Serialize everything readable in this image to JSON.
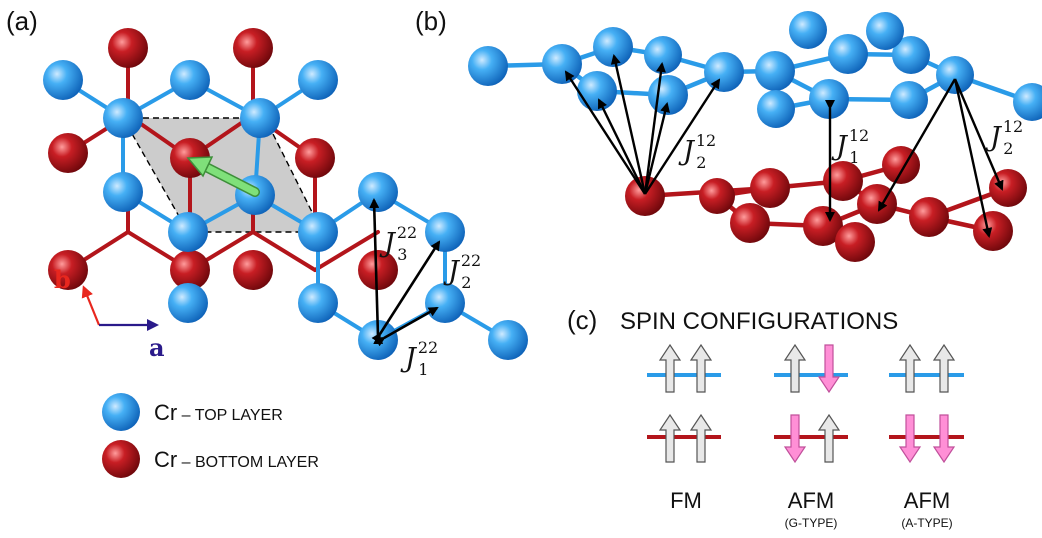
{
  "panels": {
    "a_label": "(a)",
    "b_label": "(b)",
    "c_label": "(c)"
  },
  "axes": {
    "b": "b",
    "a": "a",
    "b_color": "#e8271e",
    "a_color": "#2a1a8a"
  },
  "couplings": {
    "j3_22": {
      "main": "J",
      "sup": "22",
      "sub": "3"
    },
    "j2_22": {
      "main": "J",
      "sup": "22",
      "sub": "2"
    },
    "j1_22": {
      "main": "J",
      "sup": "22",
      "sub": "1"
    },
    "j2_12_left": {
      "main": "J",
      "sup": "12",
      "sub": "2"
    },
    "j1_12": {
      "main": "J",
      "sup": "12",
      "sub": "1"
    },
    "j2_12_right": {
      "main": "J",
      "sup": "12",
      "sub": "2"
    }
  },
  "legend": {
    "top": {
      "element": "Cr",
      "layer": " – TOP LAYER"
    },
    "bottom": {
      "element": "Cr",
      "layer": " – BOTTOM LAYER"
    }
  },
  "spin_configurations": {
    "title": "SPIN CONFIGURATIONS",
    "configs": [
      {
        "name": "FM",
        "sub": ""
      },
      {
        "name": "AFM",
        "sub": "(G-TYPE)"
      },
      {
        "name": "AFM",
        "sub": "(A-TYPE)"
      }
    ]
  },
  "colors": {
    "top_layer": "#2a9be8",
    "bottom_layer": "#b3151b",
    "spin_up": "#e8e8e8",
    "spin_down": "#ff8fd6",
    "moment_arrow": "#7fe07a",
    "cell_fill": "#cccccc"
  }
}
